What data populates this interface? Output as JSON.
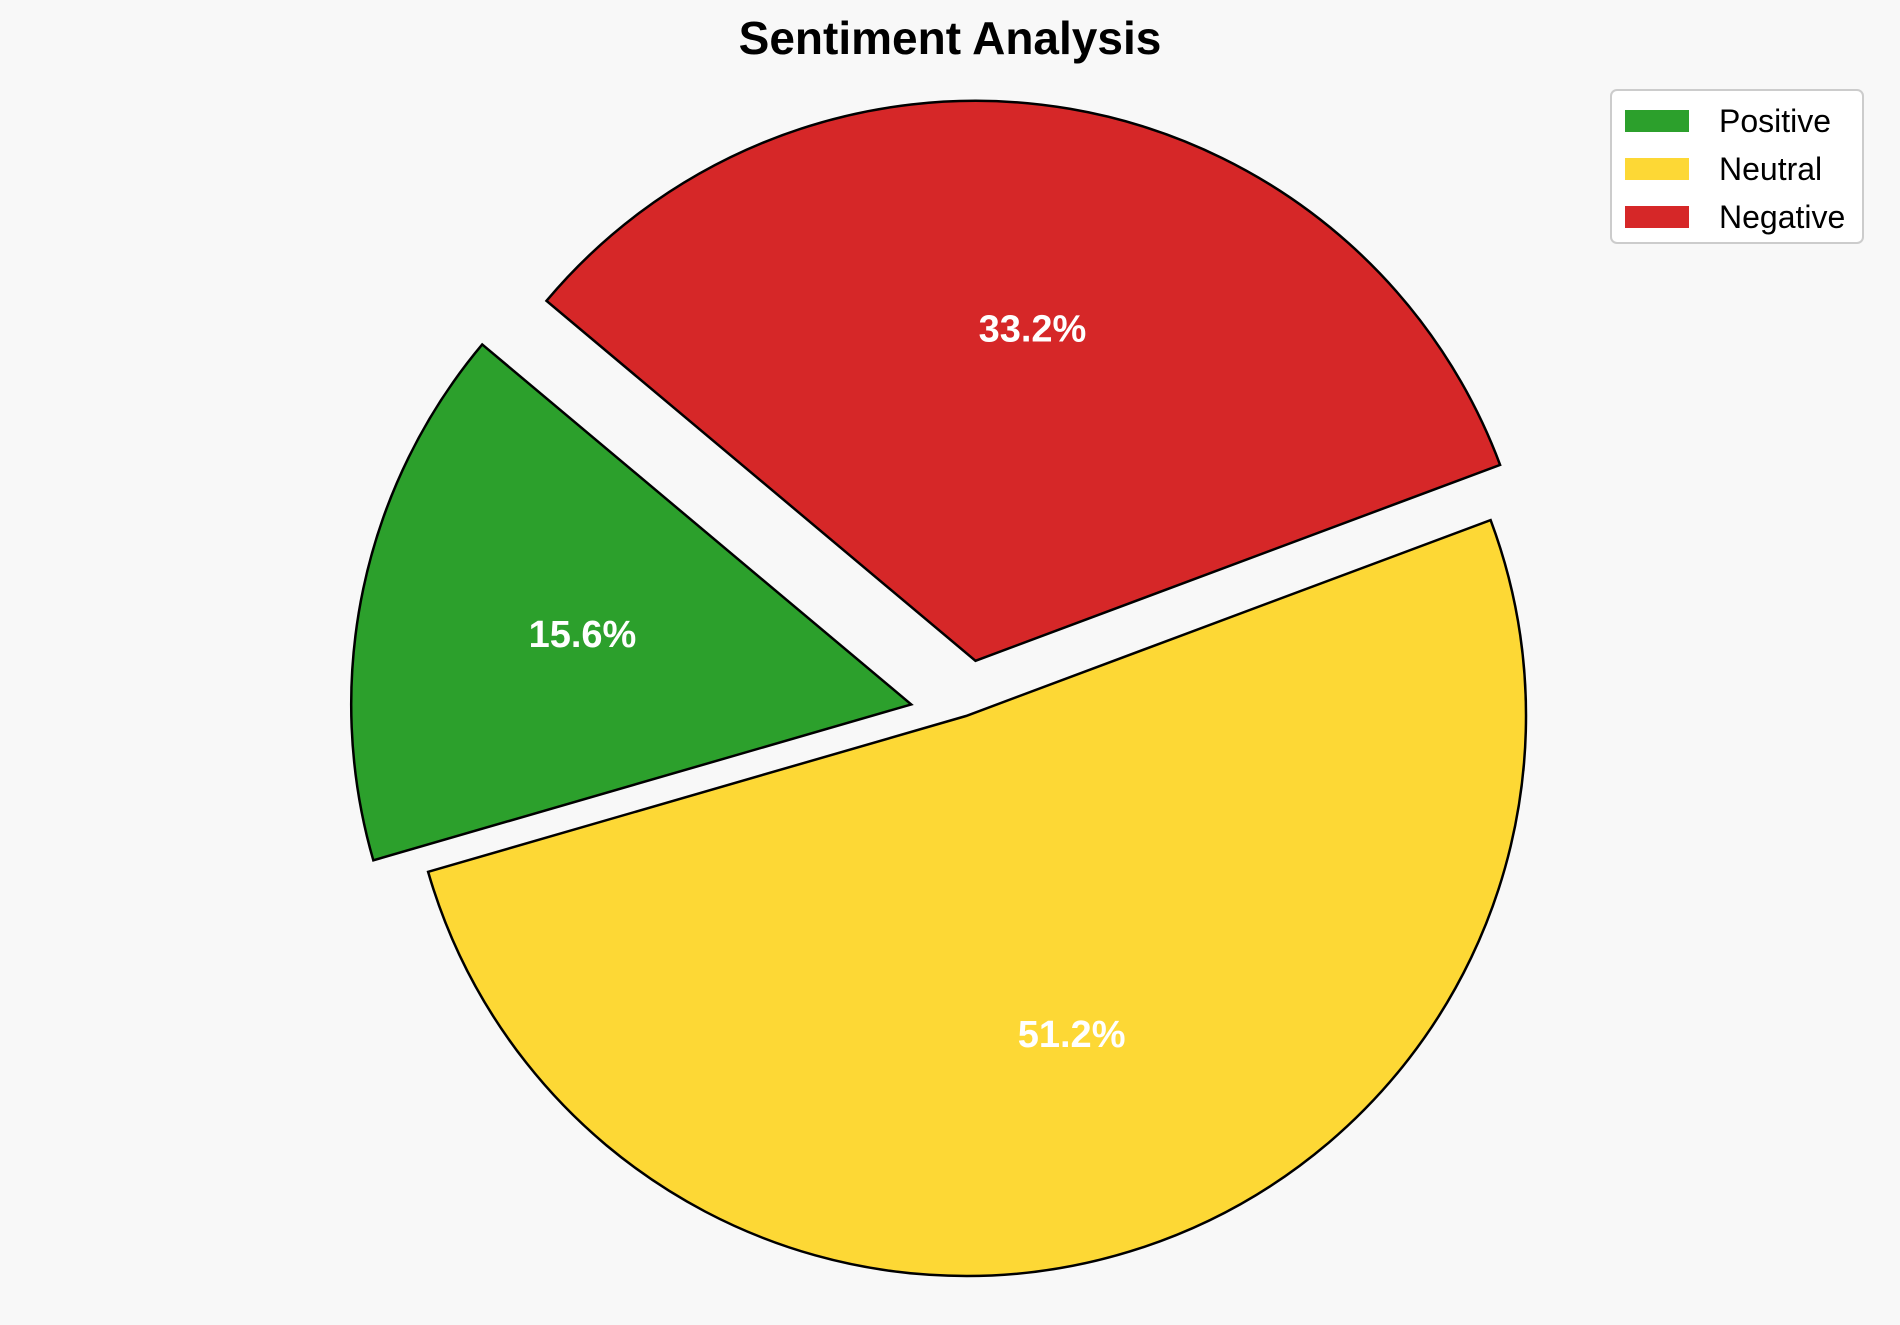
{
  "chart_data": {
    "type": "pie",
    "title": "Sentiment Analysis",
    "categories": [
      "Positive",
      "Neutral",
      "Negative"
    ],
    "values": [
      15.6,
      51.2,
      33.2
    ],
    "labels": [
      "15.6%",
      "51.2%",
      "33.2%"
    ],
    "colors": [
      "#2ca02c",
      "#fdd835",
      "#d62728"
    ],
    "exploded": [
      true,
      false,
      true
    ],
    "start_angle_deg": 140,
    "direction": "counterclockwise",
    "edge_color": "#000000",
    "label_color": "#ffffff",
    "legend_position": "top-right",
    "background_color": "#f8f8f8"
  }
}
